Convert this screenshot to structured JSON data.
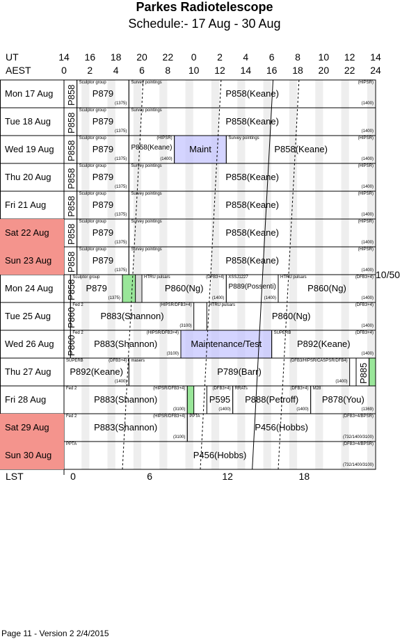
{
  "title": "Parkes Radiotelescope",
  "subtitle": "Schedule:- 17 Aug - 30 Aug",
  "axis": {
    "ut_label": "UT",
    "aest_label": "AEST",
    "ut_ticks": [
      "14",
      "16",
      "18",
      "20",
      "22",
      "0",
      "2",
      "4",
      "6",
      "8",
      "10",
      "12",
      "14"
    ],
    "aest_ticks": [
      "0",
      "2",
      "4",
      "6",
      "8",
      "10",
      "12",
      "14",
      "16",
      "18",
      "20",
      "22",
      "24"
    ],
    "lst_label": "LST",
    "lst_ticks": [
      "0",
      "6",
      "12",
      "18"
    ]
  },
  "colors": {
    "weekend": "#f4948d",
    "maint": "#ccccff",
    "test": "#99e699",
    "stripe": "#d9d9d9"
  },
  "side_note": "10/50",
  "footer": "Page 11 - Version 2  2/4/2015",
  "days": [
    {
      "label": "Mon  17 Aug",
      "weekend": false
    },
    {
      "label": "Tue   18 Aug",
      "weekend": false
    },
    {
      "label": "Wed  19 Aug",
      "weekend": false
    },
    {
      "label": "Thu   20 Aug",
      "weekend": false
    },
    {
      "label": "Fri    21 Aug",
      "weekend": false
    },
    {
      "label": "Sat   22 Aug",
      "weekend": true
    },
    {
      "label": "Sun   23 Aug",
      "weekend": true
    },
    {
      "label": "Mon  24 Aug",
      "weekend": false
    },
    {
      "label": "Tue   25 Aug",
      "weekend": false
    },
    {
      "label": "Wed  26 Aug",
      "weekend": false
    },
    {
      "label": "Thu   27 Aug",
      "weekend": false
    },
    {
      "label": "Fri    28 Aug",
      "weekend": false
    },
    {
      "label": "Sat   29 Aug",
      "weekend": true
    },
    {
      "label": "Sun   30 Aug",
      "weekend": true
    }
  ],
  "rows": [
    {
      "blocks": [
        {
          "start": 0,
          "end": 1,
          "vert": "P858"
        },
        {
          "start": 1,
          "end": 5,
          "big": "P879",
          "tl": "Sculptor group",
          "br": "(1375)"
        },
        {
          "start": 5,
          "end": 24,
          "big": "P858(Keane)",
          "tl": "Survey pointings",
          "tr": "(HIPSR)",
          "br": "(1400)"
        }
      ]
    },
    {
      "blocks": [
        {
          "start": 0,
          "end": 1,
          "vert": "P858"
        },
        {
          "start": 1,
          "end": 5,
          "big": "P879",
          "tl": "Sculptor group",
          "br": "(1375)"
        },
        {
          "start": 5,
          "end": 24,
          "big": "P858(Keane)",
          "tl": "Survey pointings",
          "br": "(1400)"
        }
      ]
    },
    {
      "blocks": [
        {
          "start": 0,
          "end": 1,
          "vert": "P858"
        },
        {
          "start": 1,
          "end": 5,
          "big": "P879",
          "tl": "Sculptor group",
          "br": "(1375)"
        },
        {
          "start": 5,
          "end": 8.5,
          "big": "P858(Keane)",
          "tr": "(HIPSR)",
          "br": "(1400)",
          "small": true
        },
        {
          "start": 8.5,
          "end": 12.5,
          "big": "Maint",
          "maint": true
        },
        {
          "start": 12.5,
          "end": 24,
          "big": "P858(Keane)",
          "tl": "Survey pointings",
          "tr": "(HIPSR)",
          "br": "(1400)"
        }
      ]
    },
    {
      "blocks": [
        {
          "start": 0,
          "end": 1,
          "vert": "P858"
        },
        {
          "start": 1,
          "end": 5,
          "big": "P879",
          "tl": "Sculptor group",
          "br": "(1375)"
        },
        {
          "start": 5,
          "end": 24,
          "big": "P858(Keane)",
          "tl": "Survey pointings",
          "tr": "(HIPSR)",
          "br": "(1400)"
        }
      ]
    },
    {
      "blocks": [
        {
          "start": 0,
          "end": 1,
          "vert": "P858"
        },
        {
          "start": 1,
          "end": 5,
          "big": "P879",
          "tl": "Sculptor group",
          "br": "(1375)"
        },
        {
          "start": 5,
          "end": 24,
          "big": "P858(Keane)",
          "tl": "Survey pointings",
          "tr": "(HIPSR)",
          "br": "(1400)"
        }
      ]
    },
    {
      "blocks": [
        {
          "start": 0,
          "end": 1,
          "vert": "P858"
        },
        {
          "start": 1,
          "end": 5,
          "big": "P879",
          "tl": "Sculptor group",
          "br": "(1375)"
        },
        {
          "start": 5,
          "end": 24,
          "big": "P858(Keane)",
          "tl": "Survey pointings",
          "tr": "(HIPSR)",
          "br": "(1400)"
        }
      ]
    },
    {
      "blocks": [
        {
          "start": 0,
          "end": 1,
          "vert": "P858"
        },
        {
          "start": 1,
          "end": 5,
          "big": "P879",
          "tl": "Sculptor group",
          "br": "(1375)"
        },
        {
          "start": 5,
          "end": 24,
          "big": "P858(Keane)",
          "tl": "Survey pointings",
          "tr": "(HIPSR)",
          "br": "(1400)"
        }
      ]
    },
    {
      "blocks": [
        {
          "start": 0,
          "end": 0.5,
          "vert": "P858"
        },
        {
          "start": 0.5,
          "end": 4.5,
          "big": "P879",
          "tl": "Sculptor group",
          "br": "(1375)"
        },
        {
          "start": 4.5,
          "end": 5.5,
          "test": true
        },
        {
          "start": 6,
          "end": 12.5,
          "big": "P860(Ng)",
          "tl": "HTRU pulsars",
          "tr": "(DFB3+4)",
          "br": "(1400)"
        },
        {
          "start": 12.5,
          "end": 16.5,
          "big": "P889(Possenti)",
          "tl": "XSSJ1227",
          "br": "(1400)",
          "small": true
        },
        {
          "start": 16.5,
          "end": 24,
          "big": "P860(Ng)",
          "tl": "HTRU pulsars",
          "tr": "(DFB3+4)",
          "br": "(1400)"
        }
      ]
    },
    {
      "blocks": [
        {
          "start": 0,
          "end": 0.5,
          "vert": "P860"
        },
        {
          "start": 0.5,
          "end": 10,
          "big": "P883(Shannon)",
          "tl": "Fed 2",
          "tr": "(HIPSR/DFB3+4)",
          "br": "(3100)"
        },
        {
          "start": 11,
          "end": 24,
          "big": "P860(Ng)",
          "tl": "HTRU pulsars",
          "tr": "(DFB3+4)",
          "br": "(1400)"
        }
      ]
    },
    {
      "blocks": [
        {
          "start": 0,
          "end": 0.5,
          "vert": "P860"
        },
        {
          "start": 0.5,
          "end": 9,
          "big": "P883(Shannon)",
          "tl": "Fed 2",
          "tr": "(HIPSR/DFB3+4)",
          "br": "(3100)"
        },
        {
          "start": 9,
          "end": 16,
          "big": "Maintenance/Test",
          "maint": true
        },
        {
          "start": 16,
          "end": 24,
          "big": "P892(Keane)",
          "tl": "SUPERB",
          "tr": "(DFB3+4)",
          "br": "(1400)"
        }
      ]
    },
    {
      "blocks": [
        {
          "start": 0,
          "end": 5,
          "big": "P892(Keane)",
          "tl": "SUPERB",
          "tr": "(DFB3+4)",
          "br": "(1400)"
        },
        {
          "start": 5,
          "end": 22,
          "big": "P789(Barr)",
          "tl": "masers",
          "tr": "(DFB3/HIPSR/CASPSR/DFB4)",
          "br": "(1400)"
        },
        {
          "start": 22.5,
          "end": 23.5,
          "vert": "P885"
        },
        {
          "start": 23.5,
          "end": 24,
          "test": true
        }
      ]
    },
    {
      "blocks": [
        {
          "start": 0,
          "end": 9.5,
          "big": "P883(Shannon)",
          "tl": "Fed 2",
          "tr": "(HIPSR/DFB3+4)",
          "br": "(3100)"
        },
        {
          "start": 9.5,
          "end": 10,
          "test": true
        },
        {
          "start": 11,
          "end": 13,
          "big": "P595",
          "tr": "(DFB3+4)",
          "br": "(1400)"
        },
        {
          "start": 13,
          "end": 19,
          "big": "P888(Petroff)",
          "tl": "RRATs",
          "tr": "(DFB3+4)",
          "br": "(1400)"
        },
        {
          "start": 19,
          "end": 24,
          "big": "P878(You)",
          "tl": "M28",
          "br": "(1369)"
        }
      ]
    },
    {
      "blocks": [
        {
          "start": 0,
          "end": 9.5,
          "big": "P883(Shannon)",
          "tl": "Fed 2",
          "tr": "(HIPSR/DFB3+4)",
          "br": "(3100)"
        },
        {
          "start": 9.5,
          "end": 24,
          "big": "P456(Hobbs)",
          "tl": "PPTA",
          "tr": "(DFB3+4/BPSR)",
          "br": "(732/1400/3100)"
        }
      ]
    },
    {
      "blocks": [
        {
          "start": 0,
          "end": 24,
          "big": "P456(Hobbs)",
          "tl": "PPTA",
          "tr": "(DFB3+4/BPSR)",
          "br": "(732/1400/3100)"
        }
      ]
    }
  ]
}
